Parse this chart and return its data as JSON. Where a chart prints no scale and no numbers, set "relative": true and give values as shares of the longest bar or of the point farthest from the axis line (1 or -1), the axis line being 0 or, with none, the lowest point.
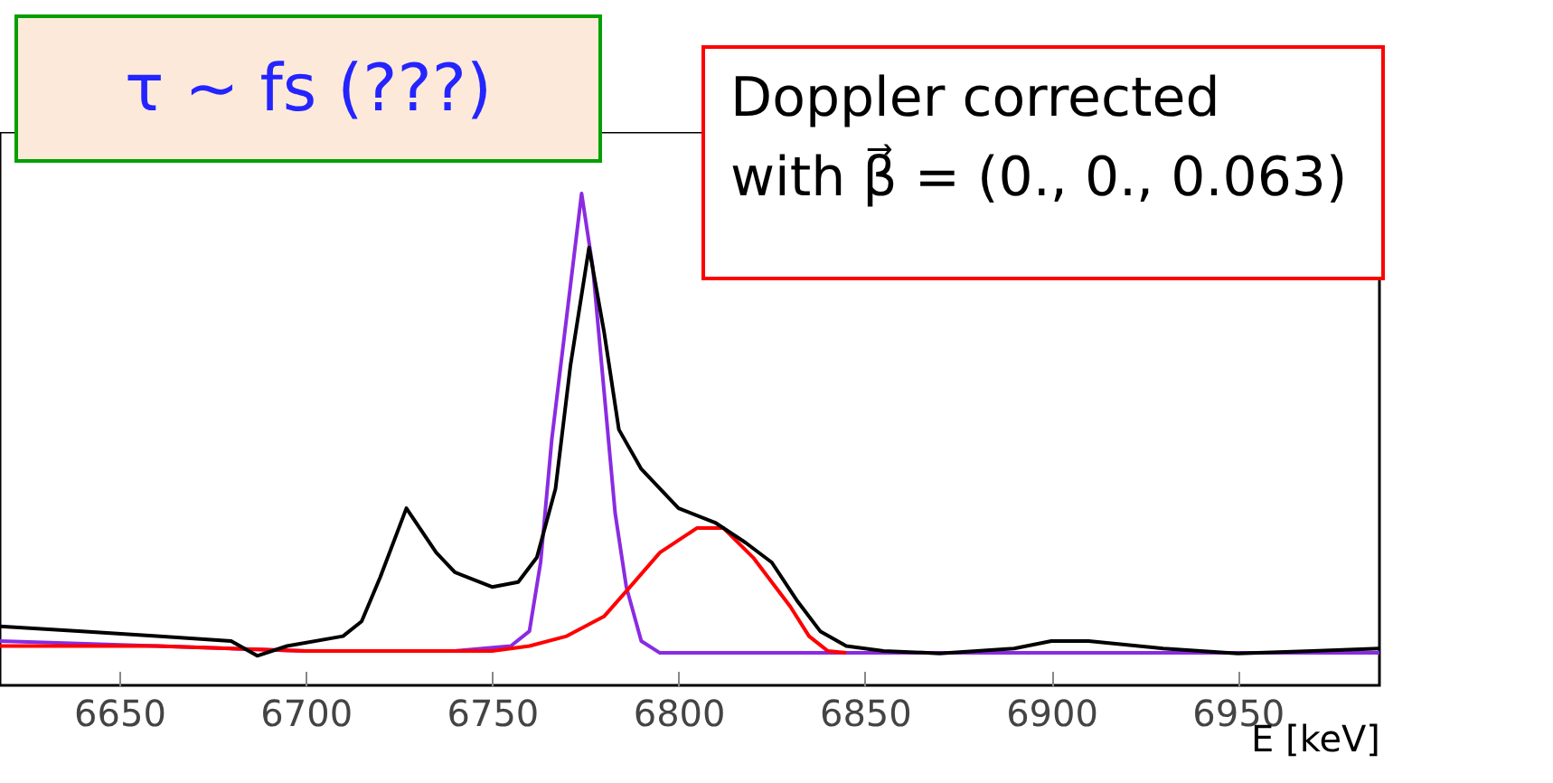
{
  "chart_data": {
    "type": "line",
    "relative": true,
    "xlabel": "E [keV]",
    "xlim": [
      6618,
      6988
    ],
    "xticks": [
      6650,
      6700,
      6750,
      6800,
      6850,
      6900,
      6950
    ],
    "tick_labels": "x",
    "grid": false,
    "annotations": [
      "τ ~ fs (???)",
      "Doppler corrected with β⃗ = (0., 0., 0.063)"
    ],
    "series": [
      {
        "color": "#8a2be2",
        "x": [
          6618,
          6660,
          6700,
          6740,
          6755,
          6760,
          6763,
          6766,
          6770,
          6774,
          6777,
          6780,
          6783,
          6786,
          6790,
          6795,
          6850,
          6900,
          6950,
          6988
        ],
        "values": [
          0.09,
          0.08,
          0.07,
          0.07,
          0.08,
          0.11,
          0.25,
          0.5,
          0.75,
          1.0,
          0.85,
          0.6,
          0.35,
          0.2,
          0.09,
          0.066,
          0.066,
          0.066,
          0.066,
          0.066
        ]
      },
      {
        "color": "#ff0000",
        "x": [
          6618,
          6660,
          6700,
          6750,
          6760,
          6770,
          6780,
          6787,
          6795,
          6805,
          6812,
          6820,
          6830,
          6835,
          6840,
          6845
        ],
        "values": [
          0.08,
          0.08,
          0.07,
          0.07,
          0.08,
          0.1,
          0.14,
          0.2,
          0.27,
          0.32,
          0.32,
          0.26,
          0.16,
          0.1,
          0.07,
          0.066
        ]
      },
      {
        "color": "#000000",
        "x": [
          6618,
          6640,
          6660,
          6680,
          6687,
          6695,
          6710,
          6715,
          6720,
          6727,
          6735,
          6740,
          6750,
          6757,
          6762,
          6767,
          6771,
          6776,
          6780,
          6784,
          6790,
          6800,
          6810,
          6818,
          6825,
          6832,
          6838,
          6845,
          6855,
          6870,
          6890,
          6900,
          6910,
          6930,
          6950,
          6970,
          6988
        ],
        "values": [
          0.12,
          0.11,
          0.1,
          0.09,
          0.06,
          0.08,
          0.1,
          0.13,
          0.22,
          0.36,
          0.27,
          0.23,
          0.2,
          0.21,
          0.26,
          0.4,
          0.65,
          0.89,
          0.72,
          0.52,
          0.44,
          0.36,
          0.33,
          0.29,
          0.25,
          0.17,
          0.11,
          0.08,
          0.07,
          0.065,
          0.075,
          0.09,
          0.09,
          0.075,
          0.065,
          0.07,
          0.075
        ]
      }
    ]
  }
}
